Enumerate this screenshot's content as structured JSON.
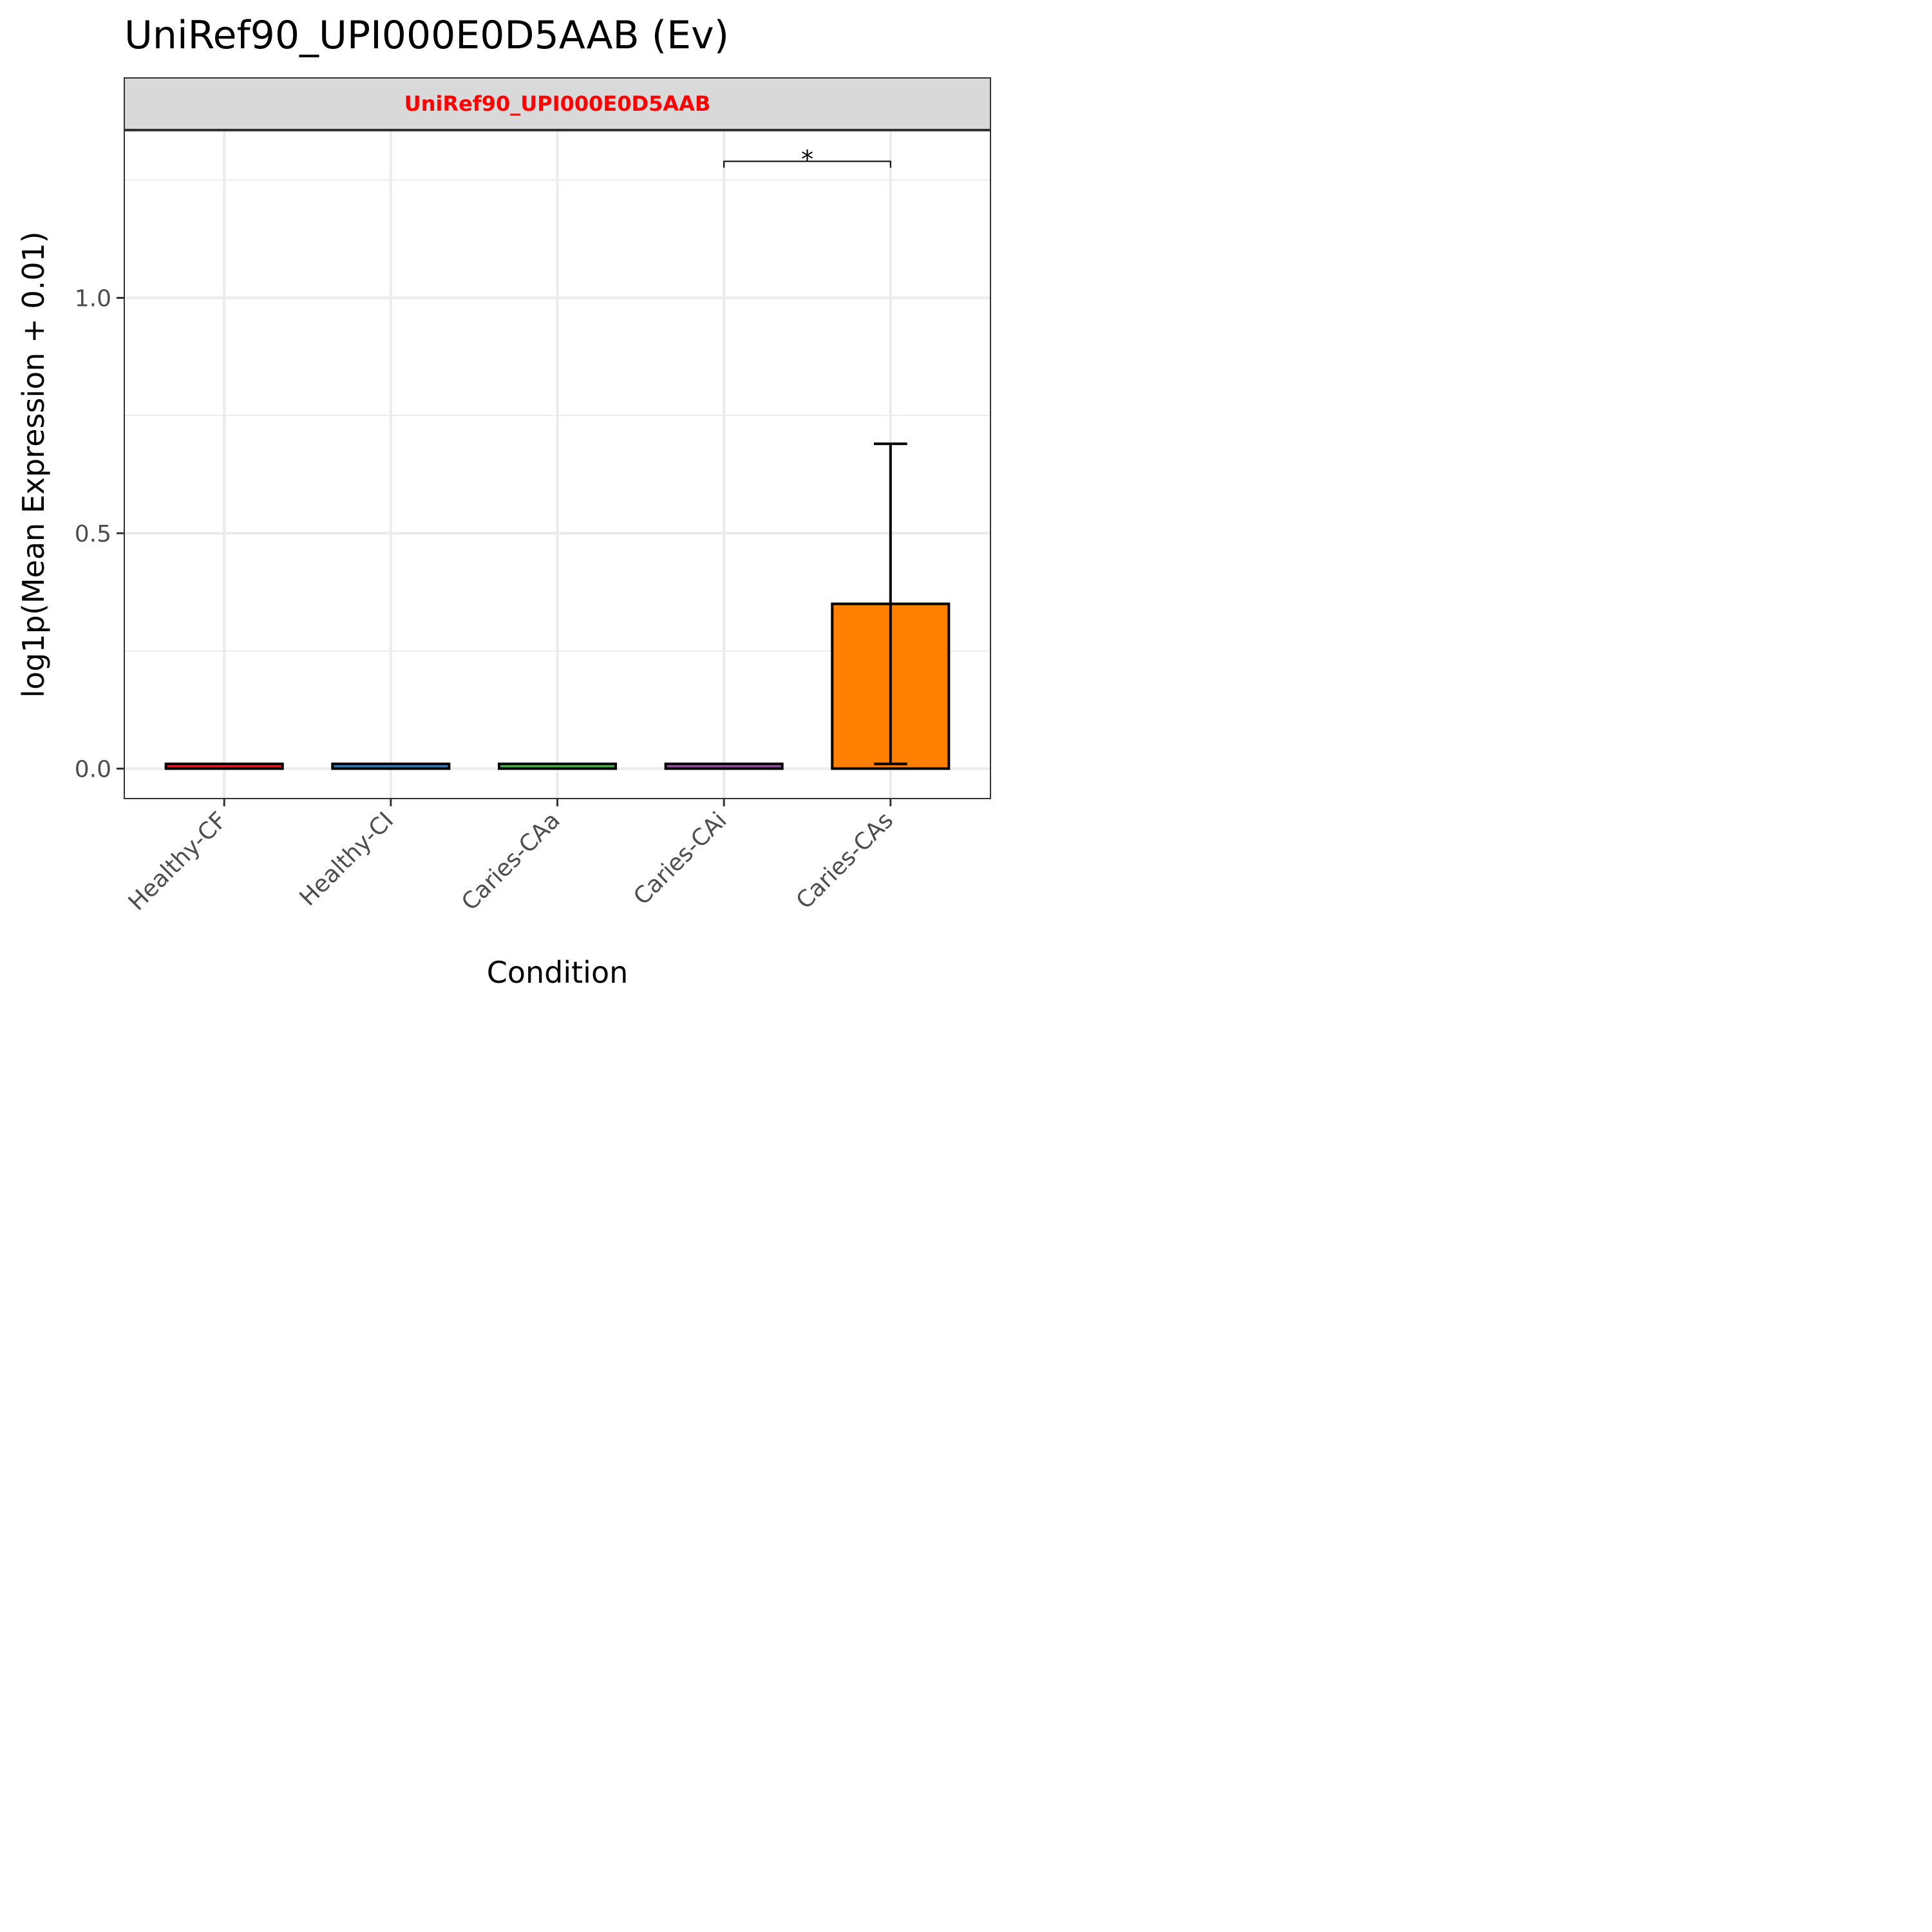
{
  "chart_data": {
    "type": "bar",
    "title": "UniRef90_UPI000E0D5AAB (Ev)",
    "facet_label": "UniRef90_UPI000E0D5AAB",
    "xlabel": "Condition",
    "ylabel": "log1p(Mean Expression + 0.01)",
    "categories": [
      "Healthy-CF",
      "Healthy-CI",
      "Caries-CAa",
      "Caries-CAi",
      "Caries-CAs"
    ],
    "values": [
      0.01,
      0.01,
      0.01,
      0.01,
      0.35
    ],
    "error_bars": {
      "lower": [
        null,
        null,
        null,
        null,
        0.01
      ],
      "upper": [
        null,
        null,
        null,
        null,
        0.69
      ]
    },
    "bar_colors": [
      "#E41A1C",
      "#377EB8",
      "#4DAF4A",
      "#984EA3",
      "#FF7F00"
    ],
    "yticks": [
      0.0,
      0.5,
      1.0
    ],
    "ytick_labels": [
      "0.0",
      "0.5",
      "1.0"
    ],
    "ylim": [
      -0.063,
      1.35
    ],
    "grid": true,
    "significance": [
      {
        "from": "Caries-CAi",
        "to": "Caries-CAs",
        "label": "*",
        "y": 1.29
      }
    ],
    "colors": {
      "strip_fill": "#D9D9D9",
      "strip_text": "#FF0000",
      "grid": "#EBEBEB",
      "panel_border": "#333333",
      "tick_text": "#4D4D4D"
    }
  }
}
